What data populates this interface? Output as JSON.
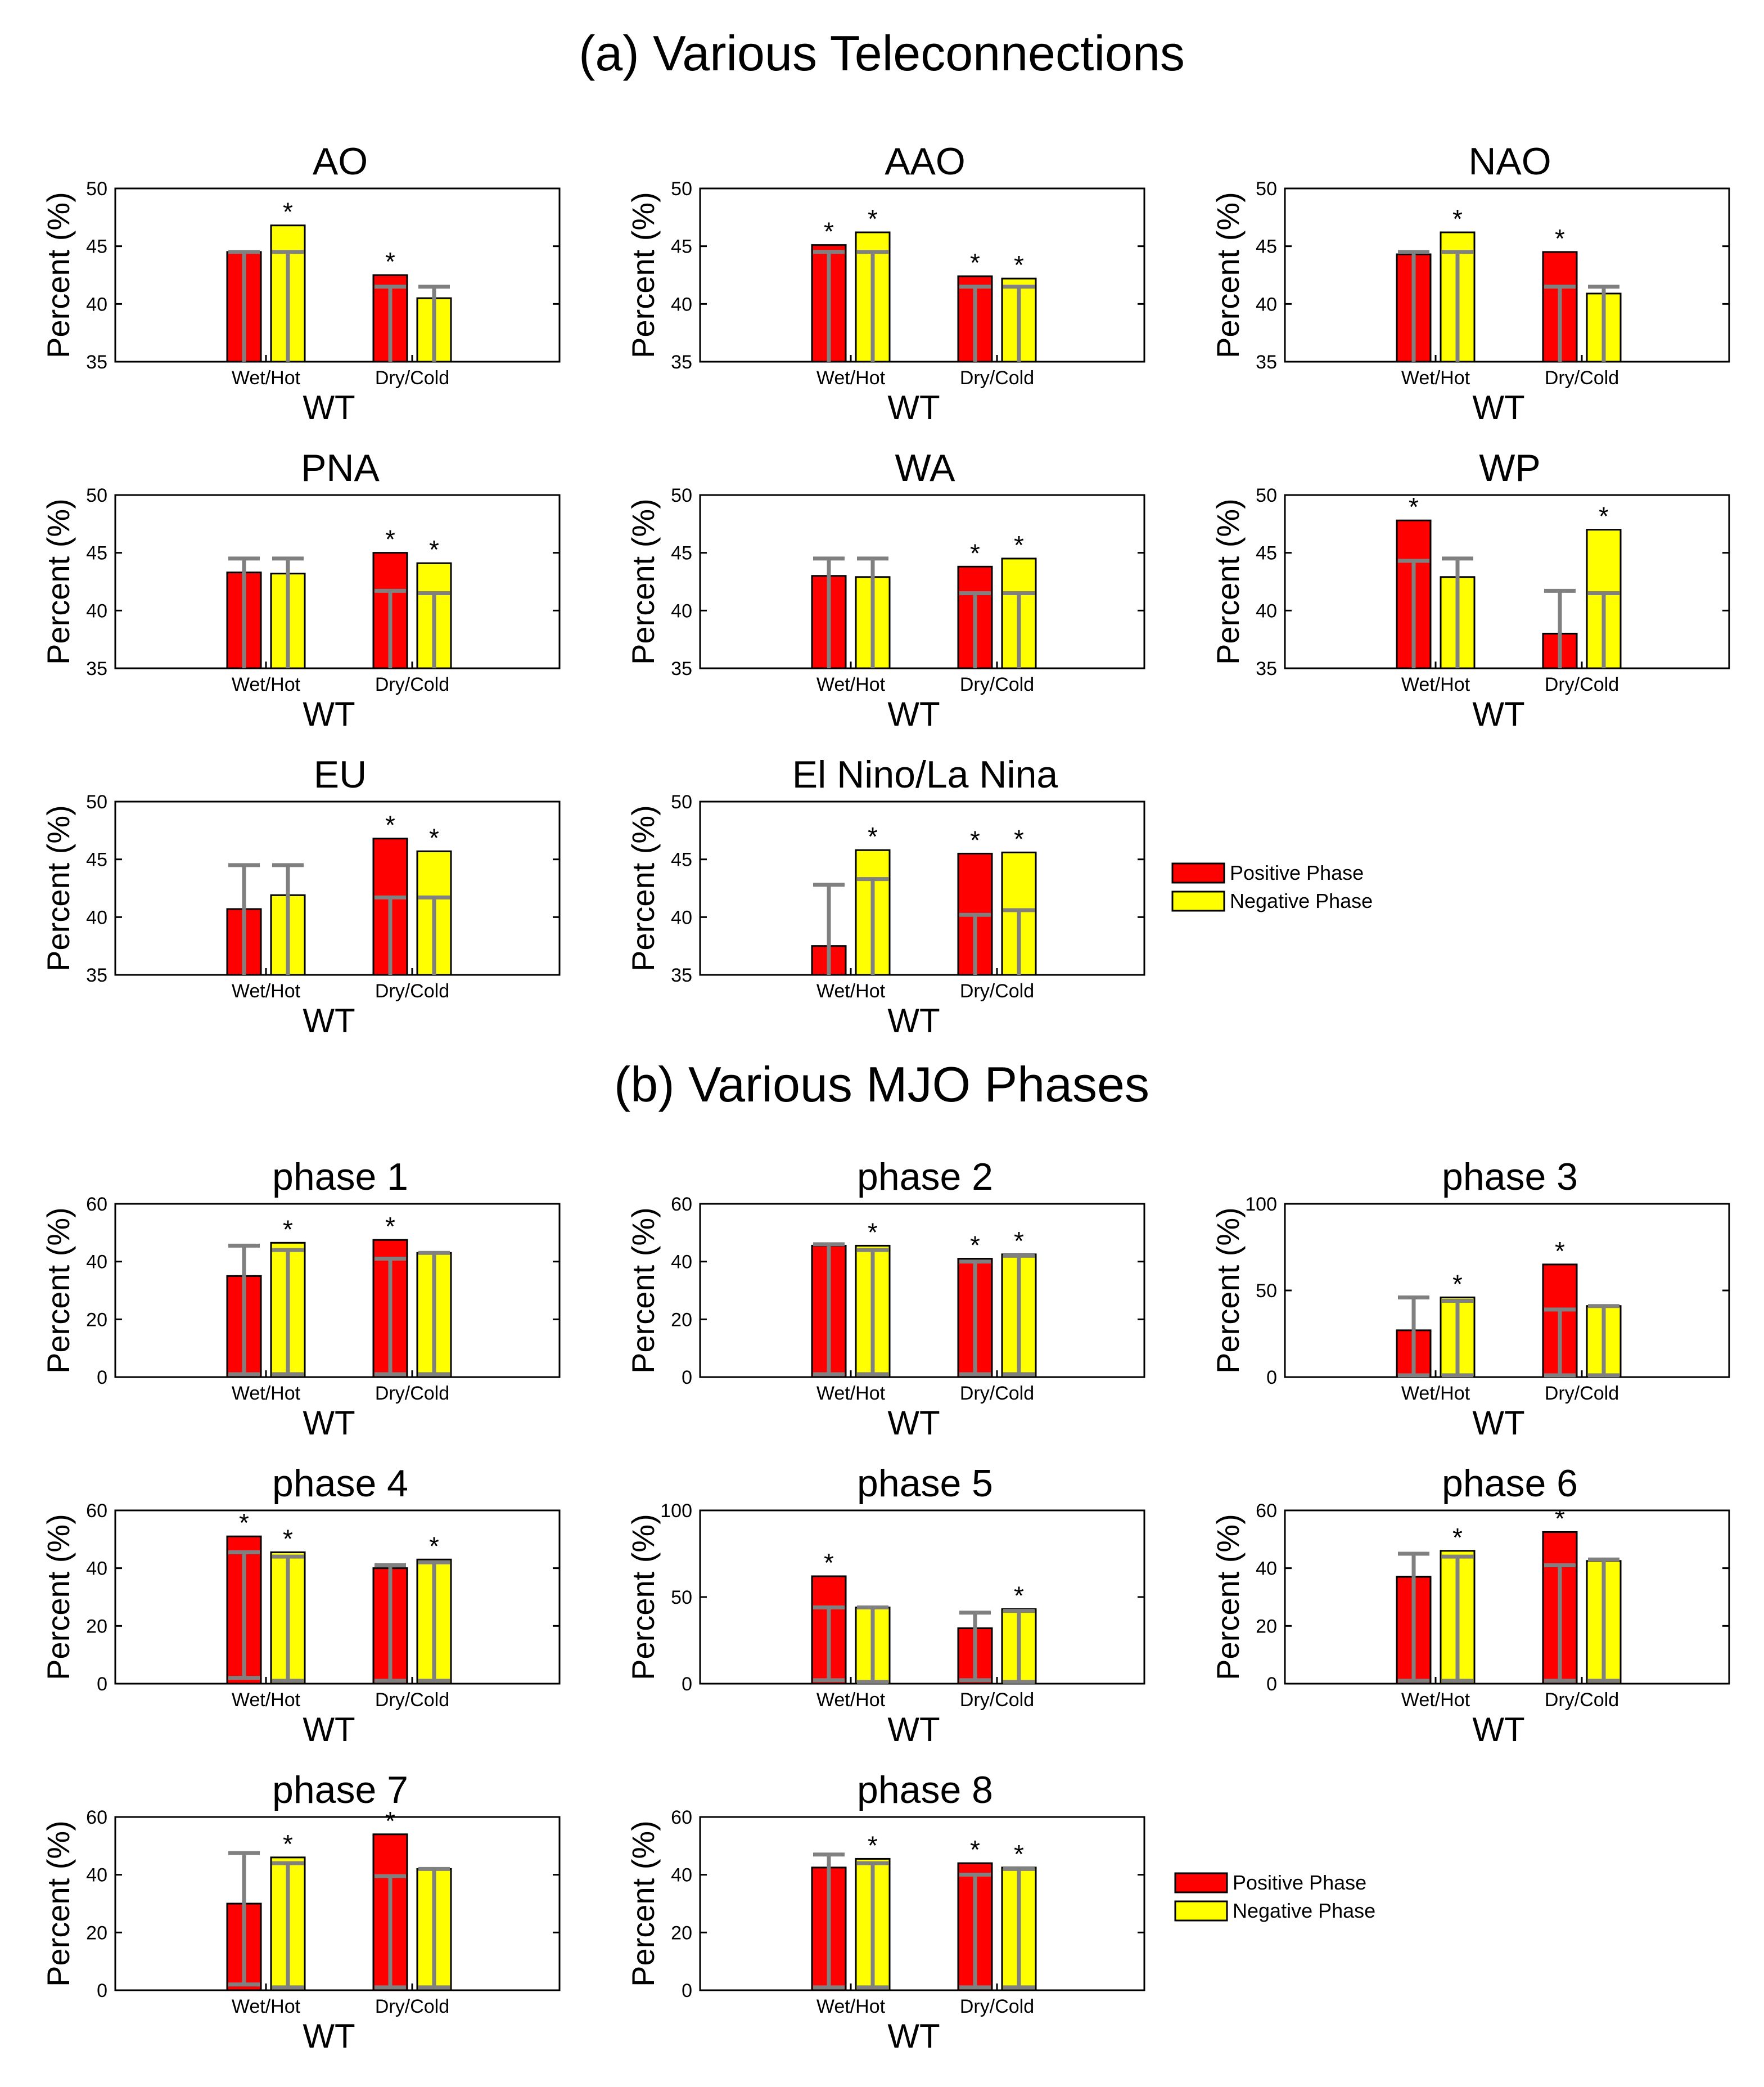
{
  "sections": [
    {
      "title": "(a) Various Teleconnections"
    },
    {
      "title": "(b) Various MJO Phases"
    }
  ],
  "legend": {
    "positive": "Positive Phase",
    "negative": "Negative Phase"
  },
  "colors": {
    "positive": "#ff0000",
    "negative": "#ffff00",
    "errorbar": "#808080",
    "axis": "#000000"
  },
  "chart_data": [
    {
      "type": "bar",
      "section": 0,
      "title": "AO",
      "ylabel": "Percent (%)",
      "xlabel": "WT",
      "ylim": [
        35,
        50
      ],
      "yticks": [
        35,
        40,
        45,
        50
      ],
      "categories": [
        "Wet/Hot",
        "Dry/Cold"
      ],
      "series": [
        {
          "name": "Positive Phase",
          "values": [
            44.5,
            42.5
          ],
          "err_low": [
            35,
            35
          ],
          "err_high": [
            44.5,
            41.5
          ],
          "sig": [
            false,
            true
          ]
        },
        {
          "name": "Negative Phase",
          "values": [
            46.8,
            40.5
          ],
          "err_low": [
            35,
            35
          ],
          "err_high": [
            44.5,
            41.5
          ],
          "sig": [
            true,
            false
          ]
        }
      ]
    },
    {
      "type": "bar",
      "section": 0,
      "title": "AAO",
      "ylabel": "Percent (%)",
      "xlabel": "WT",
      "ylim": [
        35,
        50
      ],
      "yticks": [
        35,
        40,
        45,
        50
      ],
      "categories": [
        "Wet/Hot",
        "Dry/Cold"
      ],
      "series": [
        {
          "name": "Positive Phase",
          "values": [
            45.1,
            42.4
          ],
          "err_low": [
            35,
            35
          ],
          "err_high": [
            44.5,
            41.5
          ],
          "sig": [
            true,
            true
          ]
        },
        {
          "name": "Negative Phase",
          "values": [
            46.2,
            42.2
          ],
          "err_low": [
            35,
            35
          ],
          "err_high": [
            44.5,
            41.5
          ],
          "sig": [
            true,
            true
          ]
        }
      ]
    },
    {
      "type": "bar",
      "section": 0,
      "title": "NAO",
      "ylabel": "Percent (%)",
      "xlabel": "WT",
      "ylim": [
        35,
        50
      ],
      "yticks": [
        35,
        40,
        45,
        50
      ],
      "categories": [
        "Wet/Hot",
        "Dry/Cold"
      ],
      "series": [
        {
          "name": "Positive Phase",
          "values": [
            44.3,
            44.5
          ],
          "err_low": [
            35,
            35
          ],
          "err_high": [
            44.5,
            41.5
          ],
          "sig": [
            false,
            true
          ]
        },
        {
          "name": "Negative Phase",
          "values": [
            46.2,
            40.9
          ],
          "err_low": [
            35,
            35
          ],
          "err_high": [
            44.5,
            41.5
          ],
          "sig": [
            true,
            false
          ]
        }
      ]
    },
    {
      "type": "bar",
      "section": 0,
      "title": "PNA",
      "ylabel": "Percent (%)",
      "xlabel": "WT",
      "ylim": [
        35,
        50
      ],
      "yticks": [
        35,
        40,
        45,
        50
      ],
      "categories": [
        "Wet/Hot",
        "Dry/Cold"
      ],
      "series": [
        {
          "name": "Positive Phase",
          "values": [
            43.3,
            45.0
          ],
          "err_low": [
            35,
            35
          ],
          "err_high": [
            44.5,
            41.7
          ],
          "sig": [
            false,
            true
          ]
        },
        {
          "name": "Negative Phase",
          "values": [
            43.2,
            44.1
          ],
          "err_low": [
            35,
            35
          ],
          "err_high": [
            44.5,
            41.5
          ],
          "sig": [
            false,
            true
          ]
        }
      ]
    },
    {
      "type": "bar",
      "section": 0,
      "title": "WA",
      "ylabel": "Percent (%)",
      "xlabel": "WT",
      "ylim": [
        35,
        50
      ],
      "yticks": [
        35,
        40,
        45,
        50
      ],
      "categories": [
        "Wet/Hot",
        "Dry/Cold"
      ],
      "series": [
        {
          "name": "Positive Phase",
          "values": [
            43.0,
            43.8
          ],
          "err_low": [
            35,
            35
          ],
          "err_high": [
            44.5,
            41.5
          ],
          "sig": [
            false,
            true
          ]
        },
        {
          "name": "Negative Phase",
          "values": [
            42.9,
            44.5
          ],
          "err_low": [
            35,
            35
          ],
          "err_high": [
            44.5,
            41.5
          ],
          "sig": [
            false,
            true
          ]
        }
      ]
    },
    {
      "type": "bar",
      "section": 0,
      "title": "WP",
      "ylabel": "Percent (%)",
      "xlabel": "WT",
      "ylim": [
        35,
        50
      ],
      "yticks": [
        35,
        40,
        45,
        50
      ],
      "categories": [
        "Wet/Hot",
        "Dry/Cold"
      ],
      "series": [
        {
          "name": "Positive Phase",
          "values": [
            47.8,
            38.0
          ],
          "err_low": [
            35,
            35
          ],
          "err_high": [
            44.3,
            41.7
          ],
          "sig": [
            true,
            false
          ]
        },
        {
          "name": "Negative Phase",
          "values": [
            42.9,
            47.0
          ],
          "err_low": [
            35,
            35
          ],
          "err_high": [
            44.5,
            41.5
          ],
          "sig": [
            false,
            true
          ]
        }
      ]
    },
    {
      "type": "bar",
      "section": 0,
      "title": "EU",
      "ylabel": "Percent (%)",
      "xlabel": "WT",
      "ylim": [
        35,
        50
      ],
      "yticks": [
        35,
        40,
        45,
        50
      ],
      "categories": [
        "Wet/Hot",
        "Dry/Cold"
      ],
      "series": [
        {
          "name": "Positive Phase",
          "values": [
            40.7,
            46.8
          ],
          "err_low": [
            35,
            35
          ],
          "err_high": [
            44.5,
            41.7
          ],
          "sig": [
            false,
            true
          ]
        },
        {
          "name": "Negative Phase",
          "values": [
            41.9,
            45.7
          ],
          "err_low": [
            35,
            35
          ],
          "err_high": [
            44.5,
            41.7
          ],
          "sig": [
            false,
            true
          ]
        }
      ]
    },
    {
      "type": "bar",
      "section": 0,
      "title": "El Nino/La Nina",
      "ylabel": "Percent (%)",
      "xlabel": "WT",
      "ylim": [
        35,
        50
      ],
      "yticks": [
        35,
        40,
        45,
        50
      ],
      "categories": [
        "Wet/Hot",
        "Dry/Cold"
      ],
      "series": [
        {
          "name": "Positive Phase",
          "values": [
            37.5,
            45.5
          ],
          "err_low": [
            35,
            35
          ],
          "err_high": [
            42.8,
            40.2
          ],
          "sig": [
            false,
            true
          ]
        },
        {
          "name": "Negative Phase",
          "values": [
            45.8,
            45.6
          ],
          "err_low": [
            35,
            35
          ],
          "err_high": [
            43.3,
            40.6
          ],
          "sig": [
            true,
            true
          ]
        }
      ]
    },
    {
      "type": "bar",
      "section": 1,
      "title": "phase 1",
      "ylabel": "Percent (%)",
      "xlabel": "WT",
      "ylim": [
        0,
        60
      ],
      "yticks": [
        0,
        20,
        40,
        60
      ],
      "categories": [
        "Wet/Hot",
        "Dry/Cold"
      ],
      "series": [
        {
          "name": "Positive Phase",
          "values": [
            35,
            47.5
          ],
          "err_low": [
            1,
            1
          ],
          "err_high": [
            45.5,
            41
          ],
          "sig": [
            false,
            true
          ]
        },
        {
          "name": "Negative Phase",
          "values": [
            46.5,
            43
          ],
          "err_low": [
            1,
            1
          ],
          "err_high": [
            44,
            43
          ],
          "sig": [
            true,
            false
          ]
        }
      ]
    },
    {
      "type": "bar",
      "section": 1,
      "title": "phase 2",
      "ylabel": "Percent (%)",
      "xlabel": "WT",
      "ylim": [
        0,
        60
      ],
      "yticks": [
        0,
        20,
        40,
        60
      ],
      "categories": [
        "Wet/Hot",
        "Dry/Cold"
      ],
      "series": [
        {
          "name": "Positive Phase",
          "values": [
            45.5,
            41
          ],
          "err_low": [
            1,
            1
          ],
          "err_high": [
            46,
            40
          ],
          "sig": [
            false,
            true
          ]
        },
        {
          "name": "Negative Phase",
          "values": [
            45.5,
            42.5
          ],
          "err_low": [
            1,
            1
          ],
          "err_high": [
            44,
            42
          ],
          "sig": [
            true,
            true
          ]
        }
      ]
    },
    {
      "type": "bar",
      "section": 1,
      "title": "phase 3",
      "ylabel": "Percent (%)",
      "xlabel": "WT",
      "ylim": [
        0,
        100
      ],
      "yticks": [
        0,
        50,
        100
      ],
      "categories": [
        "Wet/Hot",
        "Dry/Cold"
      ],
      "series": [
        {
          "name": "Positive Phase",
          "values": [
            27,
            65
          ],
          "err_low": [
            1,
            1
          ],
          "err_high": [
            46,
            39
          ],
          "sig": [
            false,
            true
          ]
        },
        {
          "name": "Negative Phase",
          "values": [
            46,
            41
          ],
          "err_low": [
            1,
            1
          ],
          "err_high": [
            44,
            41
          ],
          "sig": [
            true,
            false
          ]
        }
      ]
    },
    {
      "type": "bar",
      "section": 1,
      "title": "phase 4",
      "ylabel": "Percent (%)",
      "xlabel": "WT",
      "ylim": [
        0,
        60
      ],
      "yticks": [
        0,
        20,
        40,
        60
      ],
      "categories": [
        "Wet/Hot",
        "Dry/Cold"
      ],
      "series": [
        {
          "name": "Positive Phase",
          "values": [
            51,
            40
          ],
          "err_low": [
            2,
            1
          ],
          "err_high": [
            45.5,
            41
          ],
          "sig": [
            true,
            false
          ]
        },
        {
          "name": "Negative Phase",
          "values": [
            45.5,
            43
          ],
          "err_low": [
            1,
            1
          ],
          "err_high": [
            44,
            42
          ],
          "sig": [
            true,
            true
          ]
        }
      ]
    },
    {
      "type": "bar",
      "section": 1,
      "title": "phase 5",
      "ylabel": "Percent (%)",
      "xlabel": "WT",
      "ylim": [
        0,
        100
      ],
      "yticks": [
        0,
        50,
        100
      ],
      "categories": [
        "Wet/Hot",
        "Dry/Cold"
      ],
      "series": [
        {
          "name": "Positive Phase",
          "values": [
            62,
            32
          ],
          "err_low": [
            2,
            2
          ],
          "err_high": [
            44,
            41
          ],
          "sig": [
            true,
            false
          ]
        },
        {
          "name": "Negative Phase",
          "values": [
            44,
            43
          ],
          "err_low": [
            1,
            1
          ],
          "err_high": [
            44,
            42
          ],
          "sig": [
            false,
            true
          ]
        }
      ]
    },
    {
      "type": "bar",
      "section": 1,
      "title": "phase 6",
      "ylabel": "Percent (%)",
      "xlabel": "WT",
      "ylim": [
        0,
        60
      ],
      "yticks": [
        0,
        20,
        40,
        60
      ],
      "categories": [
        "Wet/Hot",
        "Dry/Cold"
      ],
      "series": [
        {
          "name": "Positive Phase",
          "values": [
            37,
            52.5
          ],
          "err_low": [
            1,
            1
          ],
          "err_high": [
            45,
            41
          ],
          "sig": [
            false,
            true
          ]
        },
        {
          "name": "Negative Phase",
          "values": [
            46,
            42.5
          ],
          "err_low": [
            1,
            1
          ],
          "err_high": [
            44,
            43
          ],
          "sig": [
            true,
            false
          ]
        }
      ]
    },
    {
      "type": "bar",
      "section": 1,
      "title": "phase 7",
      "ylabel": "Percent (%)",
      "xlabel": "WT",
      "ylim": [
        0,
        60
      ],
      "yticks": [
        0,
        20,
        40,
        60
      ],
      "categories": [
        "Wet/Hot",
        "Dry/Cold"
      ],
      "series": [
        {
          "name": "Positive Phase",
          "values": [
            30,
            54
          ],
          "err_low": [
            2,
            1
          ],
          "err_high": [
            47.5,
            39.5
          ],
          "sig": [
            false,
            true
          ]
        },
        {
          "name": "Negative Phase",
          "values": [
            46,
            42
          ],
          "err_low": [
            1,
            1
          ],
          "err_high": [
            44,
            42
          ],
          "sig": [
            true,
            false
          ]
        }
      ]
    },
    {
      "type": "bar",
      "section": 1,
      "title": "phase 8",
      "ylabel": "Percent (%)",
      "xlabel": "WT",
      "ylim": [
        0,
        60
      ],
      "yticks": [
        0,
        20,
        40,
        60
      ],
      "categories": [
        "Wet/Hot",
        "Dry/Cold"
      ],
      "series": [
        {
          "name": "Positive Phase",
          "values": [
            42.5,
            44
          ],
          "err_low": [
            1,
            1
          ],
          "err_high": [
            47,
            40
          ],
          "sig": [
            false,
            true
          ]
        },
        {
          "name": "Negative Phase",
          "values": [
            45.5,
            42.5
          ],
          "err_low": [
            1,
            1
          ],
          "err_high": [
            44,
            42
          ],
          "sig": [
            true,
            true
          ]
        }
      ]
    }
  ]
}
